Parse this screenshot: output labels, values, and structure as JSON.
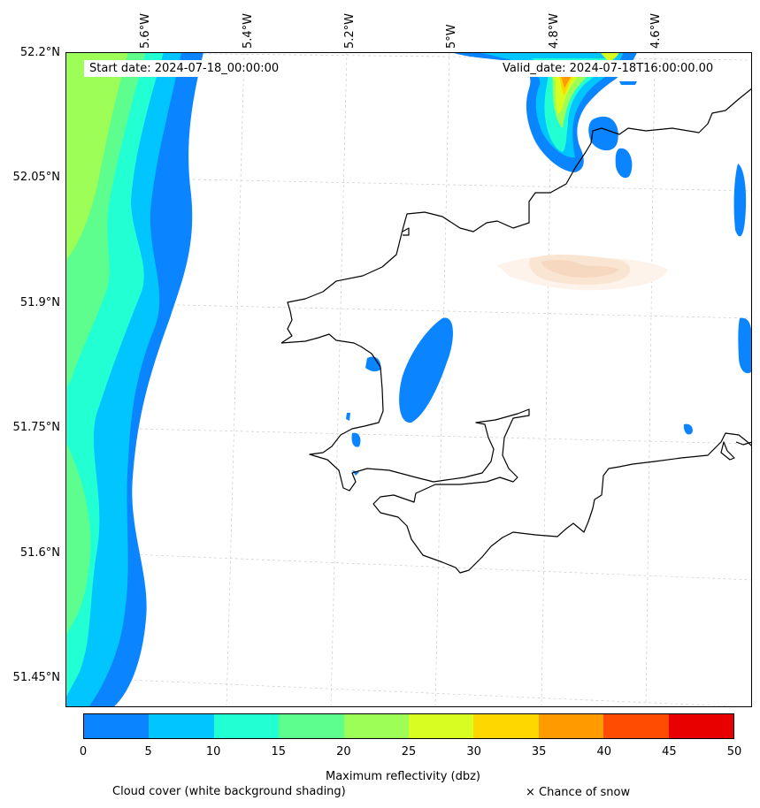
{
  "map": {
    "start_label": "Start date: 2024-07-18_00:00:00",
    "valid_label": "Valid_date: 2024-07-18T16:00:00.00",
    "lon_labels": [
      "5.6°W",
      "5.4°W",
      "5.2°W",
      "5°W",
      "4.8°W",
      "4.6°W"
    ],
    "lat_labels": [
      "52.2°N",
      "52.05°N",
      "51.9°N",
      "51.75°N",
      "51.6°N",
      "51.45°N"
    ]
  },
  "colorbar": {
    "label": "Maximum reflectivity (dbz)",
    "ticks": [
      "0",
      "5",
      "10",
      "15",
      "20",
      "25",
      "30",
      "35",
      "40",
      "45",
      "50"
    ],
    "colors": [
      "#0a84ff",
      "#00c5ff",
      "#22ffd2",
      "#5efe8e",
      "#9cfe56",
      "#d8fe21",
      "#ffd700",
      "#ff9a00",
      "#ff4c00",
      "#e80000"
    ]
  },
  "legend": {
    "cloud_cover": "Cloud cover (white background shading)",
    "snow": "× Chance of snow"
  }
}
